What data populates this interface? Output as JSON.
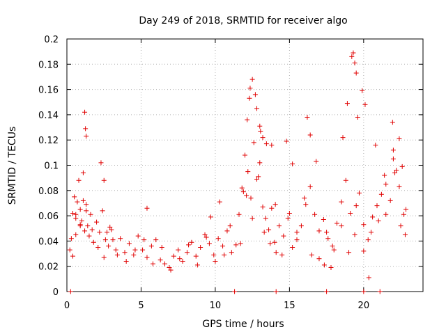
{
  "chart_data": {
    "type": "scatter",
    "title": "Day 249 of 2018, SRMTID for receiver algo",
    "xlabel": "GPS time / hours",
    "ylabel": "SRMTID / TECUs",
    "xlim": [
      0,
      24
    ],
    "ylim": [
      0,
      0.2
    ],
    "x_ticks": [
      0,
      5,
      10,
      15,
      20
    ],
    "x_tick_labels": [
      "0",
      "5",
      "10",
      "15",
      "20"
    ],
    "y_ticks": [
      0,
      0.02,
      0.04,
      0.06,
      0.08,
      0.1,
      0.12,
      0.14,
      0.16,
      0.18,
      0.2
    ],
    "y_tick_labels": [
      "0",
      "0.02",
      "0.04",
      "0.06",
      "0.08",
      "0.1",
      "0.12",
      "0.14",
      "0.16",
      "0.18",
      "0.2"
    ],
    "grid": true,
    "marker": "plus",
    "color": "#e00000",
    "series": [
      {
        "name": "SRMTID",
        "x": [
          0.2,
          0.3,
          0.4,
          0.5,
          0.6,
          0.7,
          0.8,
          0.9,
          1.0,
          1.1,
          1.2,
          1.3,
          1.4,
          1.5,
          1.6,
          1.8,
          2.0,
          2.2,
          2.4,
          2.6,
          2.8,
          3.0,
          3.3,
          3.6,
          3.9,
          4.2,
          4.5,
          4.8,
          5.1,
          5.4,
          5.7,
          6.0,
          6.3,
          6.6,
          6.9,
          7.2,
          7.5,
          7.8,
          8.1,
          8.4,
          8.7,
          9.0,
          9.3,
          9.6,
          9.9,
          10.2,
          10.5,
          10.8,
          11.1,
          11.4,
          11.6,
          11.8,
          12.0,
          12.2,
          12.4,
          12.6,
          12.8,
          13.0,
          13.2,
          13.4,
          13.6,
          13.8,
          14.0,
          14.3,
          14.6,
          14.9,
          15.2,
          15.5,
          15.8,
          16.1,
          16.4,
          16.7,
          17.0,
          17.3,
          17.6,
          17.9,
          18.2,
          18.5,
          18.8,
          19.1,
          19.4,
          19.7,
          20.0,
          20.3,
          20.6,
          20.9,
          21.2,
          21.5,
          21.8,
          22.1,
          22.4,
          22.7,
          0.4,
          0.6,
          0.9,
          1.1,
          1.3,
          1.7,
          2.1,
          2.5,
          2.9,
          3.4,
          4.0,
          4.6,
          5.2,
          5.8,
          6.4,
          7.0,
          7.6,
          8.2,
          8.8,
          9.4,
          10.0,
          10.6,
          11.0,
          11.7,
          12.1,
          12.5,
          12.9,
          13.3,
          13.7,
          14.1,
          14.5,
          15.0,
          15.5,
          16.0,
          16.5,
          17.0,
          17.5,
          18.0,
          18.5,
          19.0,
          19.5,
          20.0,
          20.5,
          21.0,
          21.5,
          22.0,
          22.5,
          22.8,
          1.2,
          1.25,
          1.3,
          2.3,
          2.5,
          12.3,
          12.5,
          12.7,
          12.8,
          13.0,
          13.2,
          16.2,
          16.4,
          18.9,
          19.2,
          19.3,
          19.4,
          19.5,
          19.9,
          20.1,
          22.0,
          22.2,
          22.4,
          22.6,
          13.8,
          14.8,
          15.2,
          16.8,
          18.6,
          19.6,
          20.8,
          21.4,
          0.6,
          0.9,
          2.7,
          3.1,
          5.4,
          9.7,
          10.3,
          11.9,
          12.15,
          12.35,
          13.05,
          13.45,
          14.05,
          17.35,
          17.8,
          20.35,
          21.95,
          22.85,
          0.25,
          11.3,
          14.1,
          17.5,
          20.0,
          21.1
        ],
        "y": [
          0.033,
          0.042,
          0.062,
          0.075,
          0.058,
          0.071,
          0.088,
          0.065,
          0.056,
          0.094,
          0.048,
          0.069,
          0.052,
          0.044,
          0.061,
          0.039,
          0.055,
          0.047,
          0.064,
          0.041,
          0.036,
          0.049,
          0.033,
          0.042,
          0.031,
          0.038,
          0.029,
          0.044,
          0.033,
          0.027,
          0.036,
          0.041,
          0.025,
          0.022,
          0.019,
          0.028,
          0.033,
          0.024,
          0.031,
          0.039,
          0.028,
          0.035,
          0.045,
          0.038,
          0.029,
          0.042,
          0.036,
          0.048,
          0.031,
          0.037,
          0.061,
          0.082,
          0.108,
          0.095,
          0.074,
          0.118,
          0.089,
          0.102,
          0.067,
          0.058,
          0.049,
          0.066,
          0.039,
          0.052,
          0.044,
          0.058,
          0.035,
          0.047,
          0.052,
          0.069,
          0.083,
          0.061,
          0.048,
          0.057,
          0.042,
          0.036,
          0.054,
          0.071,
          0.088,
          0.062,
          0.045,
          0.078,
          0.053,
          0.041,
          0.059,
          0.068,
          0.077,
          0.085,
          0.072,
          0.094,
          0.083,
          0.061,
          0.028,
          0.045,
          0.053,
          0.072,
          0.064,
          0.049,
          0.035,
          0.027,
          0.051,
          0.029,
          0.024,
          0.033,
          0.041,
          0.022,
          0.035,
          0.017,
          0.026,
          0.037,
          0.021,
          0.043,
          0.024,
          0.029,
          0.052,
          0.038,
          0.076,
          0.058,
          0.091,
          0.047,
          0.038,
          0.031,
          0.029,
          0.062,
          0.041,
          0.074,
          0.029,
          0.026,
          0.047,
          0.033,
          0.052,
          0.031,
          0.068,
          0.032,
          0.047,
          0.056,
          0.061,
          0.105,
          0.052,
          0.045,
          0.142,
          0.129,
          0.123,
          0.102,
          0.088,
          0.153,
          0.168,
          0.156,
          0.145,
          0.131,
          0.122,
          0.138,
          0.124,
          0.149,
          0.186,
          0.189,
          0.181,
          0.173,
          0.159,
          0.148,
          0.112,
          0.096,
          0.121,
          0.099,
          0.116,
          0.119,
          0.101,
          0.103,
          0.122,
          0.138,
          0.116,
          0.092,
          0.061,
          0.052,
          0.047,
          0.041,
          0.066,
          0.059,
          0.071,
          0.079,
          0.136,
          0.161,
          0.127,
          0.117,
          0.069,
          0.021,
          0.019,
          0.011,
          0.134,
          0.065,
          0.0,
          0.0,
          0.0,
          0.0,
          0.0,
          0.0
        ]
      }
    ]
  }
}
